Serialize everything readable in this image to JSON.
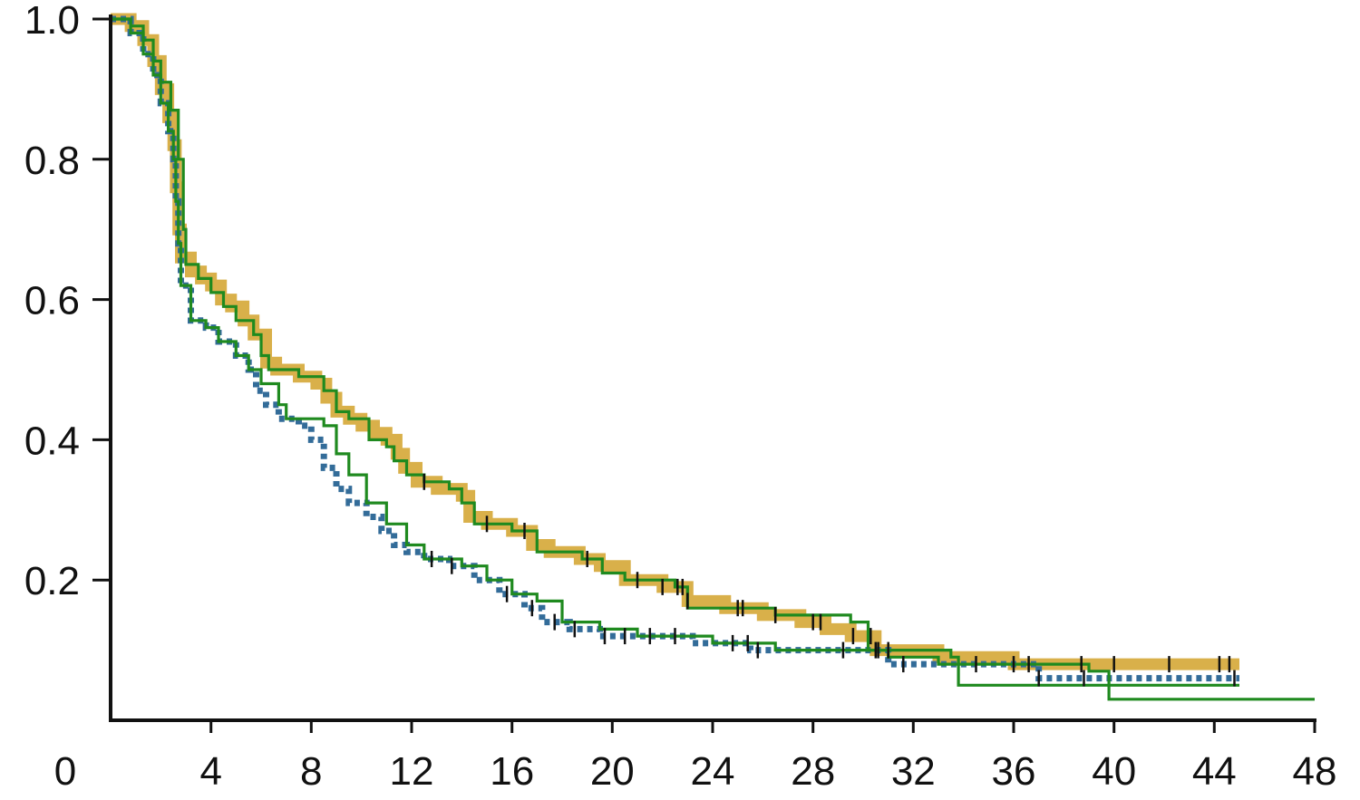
{
  "chart_data": {
    "type": "line",
    "title": "",
    "xlabel": "",
    "ylabel": "",
    "xlim": [
      0,
      48
    ],
    "ylim": [
      0,
      1.0
    ],
    "x_ticks": [
      4,
      8,
      12,
      16,
      20,
      24,
      28,
      32,
      36,
      40,
      44,
      48
    ],
    "x_origin_label": "0",
    "y_ticks": [
      "1.0",
      "0.8",
      "0.6",
      "0.4",
      "0.2"
    ],
    "y_tick_values": [
      1.0,
      0.8,
      0.6,
      0.4,
      0.2
    ],
    "grid": false,
    "legend": "none",
    "series": [
      {
        "style": "thick-band",
        "color": "#d9b04a",
        "points": [
          [
            0,
            1.0
          ],
          [
            0.8,
            0.99
          ],
          [
            1.3,
            0.97
          ],
          [
            1.7,
            0.94
          ],
          [
            2.0,
            0.9
          ],
          [
            2.3,
            0.86
          ],
          [
            2.5,
            0.82
          ],
          [
            2.6,
            0.76
          ],
          [
            2.7,
            0.7
          ],
          [
            2.8,
            0.66
          ],
          [
            3.2,
            0.64
          ],
          [
            3.6,
            0.63
          ],
          [
            4.0,
            0.62
          ],
          [
            4.4,
            0.6
          ],
          [
            4.8,
            0.59
          ],
          [
            5.3,
            0.57
          ],
          [
            5.7,
            0.55
          ],
          [
            6.2,
            0.51
          ],
          [
            6.6,
            0.5
          ],
          [
            7.5,
            0.49
          ],
          [
            8.2,
            0.48
          ],
          [
            8.6,
            0.46
          ],
          [
            9.0,
            0.44
          ],
          [
            9.5,
            0.43
          ],
          [
            10.0,
            0.42
          ],
          [
            10.5,
            0.41
          ],
          [
            11.0,
            0.4
          ],
          [
            11.4,
            0.38
          ],
          [
            11.7,
            0.36
          ],
          [
            12.2,
            0.34
          ],
          [
            13.0,
            0.33
          ],
          [
            14.0,
            0.32
          ],
          [
            14.3,
            0.29
          ],
          [
            15.0,
            0.28
          ],
          [
            16.0,
            0.27
          ],
          [
            16.8,
            0.25
          ],
          [
            17.5,
            0.24
          ],
          [
            18.7,
            0.23
          ],
          [
            19.5,
            0.22
          ],
          [
            20.5,
            0.2
          ],
          [
            22.0,
            0.19
          ],
          [
            23.0,
            0.17
          ],
          [
            24.5,
            0.16
          ],
          [
            26.0,
            0.15
          ],
          [
            27.5,
            0.14
          ],
          [
            28.5,
            0.13
          ],
          [
            29.5,
            0.12
          ],
          [
            30.5,
            0.1
          ],
          [
            33.0,
            0.09
          ],
          [
            36.0,
            0.08
          ],
          [
            45.0,
            0.08
          ]
        ],
        "censor_times": [
          12.5,
          15.0,
          16.5,
          19.0,
          21.0,
          22.0,
          22.6,
          22.8,
          23.0,
          25.0,
          25.2,
          26.5,
          28.0,
          28.3,
          29.6,
          30.3,
          30.5,
          31.0,
          36.0,
          36.6,
          38.7,
          40.0,
          42.2,
          44.2,
          44.6
        ]
      },
      {
        "style": "dotted",
        "color": "#336c99",
        "points": [
          [
            0,
            1.0
          ],
          [
            0.8,
            0.98
          ],
          [
            1.3,
            0.95
          ],
          [
            1.7,
            0.92
          ],
          [
            2.0,
            0.88
          ],
          [
            2.3,
            0.84
          ],
          [
            2.5,
            0.8
          ],
          [
            2.6,
            0.74
          ],
          [
            2.7,
            0.68
          ],
          [
            2.8,
            0.62
          ],
          [
            3.2,
            0.57
          ],
          [
            3.8,
            0.56
          ],
          [
            4.3,
            0.54
          ],
          [
            5.0,
            0.52
          ],
          [
            5.5,
            0.5
          ],
          [
            5.8,
            0.47
          ],
          [
            6.2,
            0.45
          ],
          [
            6.7,
            0.43
          ],
          [
            7.5,
            0.42
          ],
          [
            8.0,
            0.4
          ],
          [
            8.5,
            0.36
          ],
          [
            9.0,
            0.33
          ],
          [
            9.5,
            0.31
          ],
          [
            10.2,
            0.29
          ],
          [
            10.8,
            0.27
          ],
          [
            11.3,
            0.25
          ],
          [
            11.8,
            0.24
          ],
          [
            12.5,
            0.23
          ],
          [
            13.5,
            0.22
          ],
          [
            14.5,
            0.2
          ],
          [
            15.5,
            0.18
          ],
          [
            16.5,
            0.16
          ],
          [
            17.2,
            0.14
          ],
          [
            18.3,
            0.13
          ],
          [
            19.5,
            0.12
          ],
          [
            21.0,
            0.12
          ],
          [
            22.5,
            0.12
          ],
          [
            23.2,
            0.11
          ],
          [
            25.5,
            0.1
          ],
          [
            30.0,
            0.1
          ],
          [
            31.0,
            0.08
          ],
          [
            37.0,
            0.06
          ],
          [
            45.0,
            0.06
          ]
        ],
        "censor_times": [
          12.8,
          13.6,
          15.8,
          16.8,
          17.7,
          18.5,
          19.7,
          20.5,
          21.5,
          22.5,
          24.8,
          25.4,
          25.8,
          29.2,
          30.6,
          31.6,
          34.5,
          37.0,
          38.8,
          44.8
        ]
      },
      {
        "style": "thin",
        "color": "#1f8a1f",
        "points": [
          [
            0,
            1.0
          ],
          [
            0.8,
            0.99
          ],
          [
            1.3,
            0.97
          ],
          [
            1.7,
            0.94
          ],
          [
            2.0,
            0.91
          ],
          [
            2.4,
            0.87
          ],
          [
            2.7,
            0.8
          ],
          [
            2.9,
            0.7
          ],
          [
            3.0,
            0.65
          ],
          [
            3.5,
            0.63
          ],
          [
            4.0,
            0.61
          ],
          [
            4.5,
            0.59
          ],
          [
            5.0,
            0.57
          ],
          [
            5.7,
            0.55
          ],
          [
            6.0,
            0.52
          ],
          [
            6.3,
            0.5
          ],
          [
            7.5,
            0.49
          ],
          [
            8.5,
            0.47
          ],
          [
            9.0,
            0.44
          ],
          [
            9.5,
            0.43
          ],
          [
            10.3,
            0.4
          ],
          [
            11.0,
            0.39
          ],
          [
            11.3,
            0.37
          ],
          [
            11.8,
            0.35
          ],
          [
            12.5,
            0.34
          ],
          [
            13.5,
            0.33
          ],
          [
            14.0,
            0.31
          ],
          [
            14.5,
            0.28
          ],
          [
            16.0,
            0.27
          ],
          [
            17.0,
            0.24
          ],
          [
            18.8,
            0.23
          ],
          [
            19.6,
            0.21
          ],
          [
            20.5,
            0.2
          ],
          [
            22.5,
            0.19
          ],
          [
            23.0,
            0.16
          ],
          [
            26.5,
            0.15
          ],
          [
            29.5,
            0.14
          ],
          [
            30.2,
            0.1
          ],
          [
            33.5,
            0.09
          ],
          [
            33.8,
            0.05
          ],
          [
            45.0,
            0.05
          ]
        ]
      },
      {
        "style": "thin",
        "color": "#1f8a1f",
        "points": [
          [
            0,
            1.0
          ],
          [
            0.8,
            0.98
          ],
          [
            1.3,
            0.95
          ],
          [
            1.7,
            0.92
          ],
          [
            2.0,
            0.88
          ],
          [
            2.3,
            0.84
          ],
          [
            2.5,
            0.8
          ],
          [
            2.6,
            0.74
          ],
          [
            2.7,
            0.68
          ],
          [
            2.8,
            0.62
          ],
          [
            3.2,
            0.57
          ],
          [
            3.8,
            0.56
          ],
          [
            4.3,
            0.54
          ],
          [
            5.0,
            0.52
          ],
          [
            5.5,
            0.5
          ],
          [
            6.0,
            0.48
          ],
          [
            6.7,
            0.45
          ],
          [
            7.0,
            0.43
          ],
          [
            8.5,
            0.42
          ],
          [
            9.0,
            0.38
          ],
          [
            9.5,
            0.35
          ],
          [
            10.2,
            0.31
          ],
          [
            11.0,
            0.28
          ],
          [
            11.8,
            0.25
          ],
          [
            12.5,
            0.23
          ],
          [
            14.0,
            0.22
          ],
          [
            15.0,
            0.2
          ],
          [
            16.0,
            0.18
          ],
          [
            17.0,
            0.17
          ],
          [
            18.0,
            0.14
          ],
          [
            19.5,
            0.13
          ],
          [
            21.0,
            0.12
          ],
          [
            23.0,
            0.12
          ],
          [
            24.0,
            0.11
          ],
          [
            26.5,
            0.1
          ],
          [
            31.0,
            0.09
          ],
          [
            33.0,
            0.08
          ],
          [
            39.0,
            0.07
          ],
          [
            39.8,
            0.03
          ],
          [
            48.0,
            0.03
          ]
        ]
      }
    ]
  }
}
